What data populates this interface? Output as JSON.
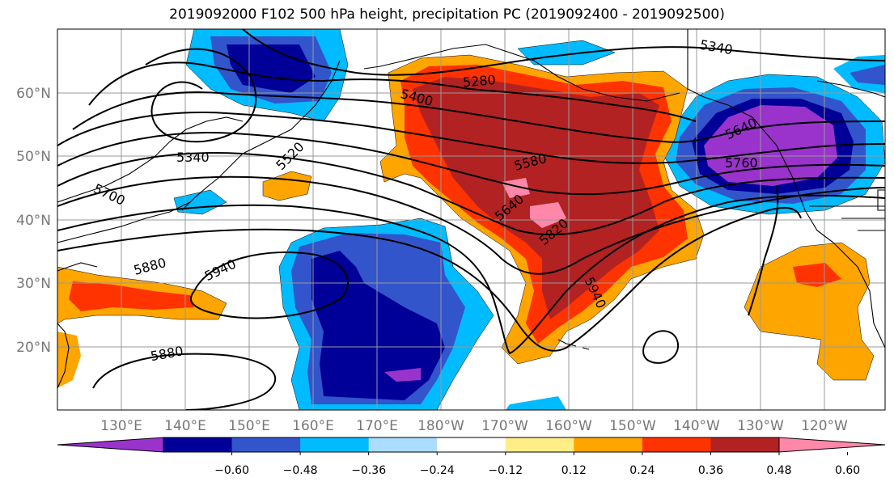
{
  "title": "2019092000 F102 500 hPa height, precipitation PC (2019092400 - 2019092500)",
  "map": {
    "lat_labels": [
      "60°N",
      "50°N",
      "40°N",
      "30°N",
      "20°N"
    ],
    "lon_labels": [
      "130°E",
      "140°E",
      "150°E",
      "160°E",
      "170°E",
      "180°W",
      "170°W",
      "160°W",
      "150°W",
      "140°W",
      "130°W",
      "120°W"
    ],
    "contour_labels": [
      "5340",
      "5280",
      "5400",
      "5520",
      "5340",
      "5700",
      "5580",
      "5640",
      "5820",
      "5880",
      "5940",
      "5940",
      "5880",
      "5760",
      "5640"
    ],
    "colors": {
      "lt_-0.60": "#9933cc",
      "-0.60_-0.48": "#000099",
      "-0.48_-0.36": "#3355cc",
      "-0.36_-0.24": "#00bbff",
      "-0.24_-0.12": "#aaddff",
      "-0.12_0.12": "#ffffff",
      "0.12_0.24": "#ffee88",
      "0.24_0.36": "#ffa500",
      "0.36_0.48": "#ff3300",
      "0.48_0.60": "#b22222",
      "gt_0.60": "#ff88aa"
    }
  },
  "colorbar": {
    "tick_labels": [
      "−0.60",
      "−0.48",
      "−0.36",
      "−0.24",
      "−0.12",
      "0.12",
      "0.24",
      "0.36",
      "0.48",
      "0.60"
    ],
    "colors": [
      "#9933cc",
      "#000099",
      "#3355cc",
      "#00bbff",
      "#aaddff",
      "#ffffff",
      "#ffee88",
      "#ffa500",
      "#ff3300",
      "#b22222",
      "#ff88aa"
    ]
  }
}
